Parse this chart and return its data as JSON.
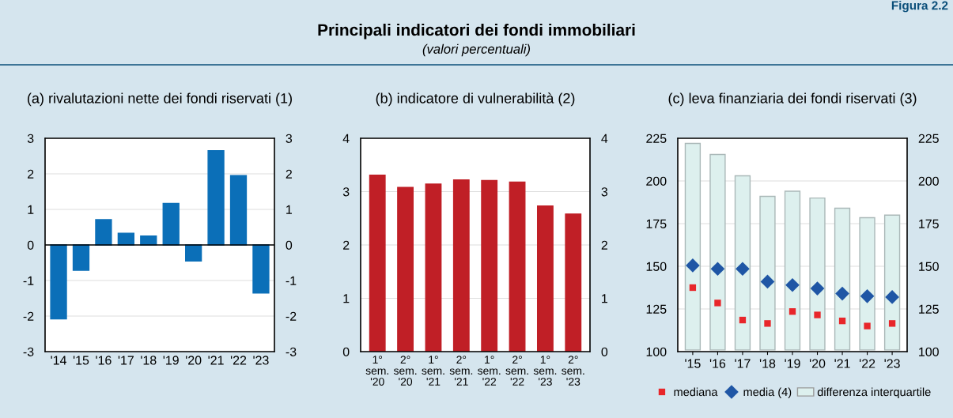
{
  "chart_data": [
    {
      "type": "other",
      "title": "Principali indicatori dei fondi immobiliari",
      "subtitle": "(valori percentuali)",
      "annotations": [
        "Figura 2.2"
      ]
    },
    {
      "type": "bar",
      "title": "(a) rivalutazioni nette dei fondi riservati (1)",
      "categories": [
        "'14",
        "'15",
        "'16",
        "'17",
        "'18",
        "'19",
        "'20",
        "'21",
        "'22",
        "'23"
      ],
      "series": [
        {
          "color": "#0b6fb8",
          "values": [
            -2.08,
            -0.71,
            0.71,
            0.33,
            0.25,
            1.17,
            -0.45,
            2.65,
            1.95,
            -1.35
          ]
        }
      ],
      "ylim": [
        -3,
        3
      ],
      "yticks": [
        {
          "value": -3,
          "label": "-3"
        },
        {
          "value": -2,
          "label": "-2"
        },
        {
          "value": -1,
          "label": "-1"
        },
        0,
        1,
        2,
        3
      ],
      "y2lim": [
        -3,
        3
      ],
      "y2ticks": [
        {
          "value": -3,
          "label": "-3"
        },
        {
          "value": -2,
          "label": "-2"
        },
        {
          "value": -1,
          "label": "-1"
        },
        0,
        1,
        2,
        3
      ],
      "ref_lines": [
        {
          "axis": "y",
          "value": 0,
          "color": "#000000"
        }
      ],
      "grid": "y",
      "legend": false
    },
    {
      "type": "bar",
      "title": "(b) indicatore di vulnerabilità (2)",
      "categories": [
        "1°\nsem.\n'20",
        "2°\nsem.\n'20",
        "1°\nsem.\n'21",
        "2°\nsem.\n'21",
        "1°\nsem.\n'22",
        "2°\nsem.\n'22",
        "1°\nsem.\n'23",
        "2°\nsem.\n'23"
      ],
      "series": [
        {
          "color": "#c01f26",
          "values": [
            3.31,
            3.08,
            3.14,
            3.22,
            3.21,
            3.18,
            2.73,
            2.58
          ]
        }
      ],
      "ylim": [
        0,
        4
      ],
      "yticks": [
        0,
        1,
        2,
        3,
        4
      ],
      "y2lim": [
        0,
        4
      ],
      "y2ticks": [
        0,
        1,
        2,
        3,
        4
      ],
      "grid": "y",
      "legend": false
    },
    {
      "type": "bar",
      "title": "(c) leva finanziaria dei fondi riservati (3)",
      "categories": [
        "'15",
        "'16",
        "'17",
        "'18",
        "'19",
        "'20",
        "'21",
        "'22",
        "'23"
      ],
      "series": [
        {
          "name": "mediana",
          "type": "scatter",
          "marker": "square",
          "color": "#e8262a",
          "values": [
            137.5,
            128.5,
            118.5,
            116.5,
            123.5,
            121.5,
            118,
            115,
            116.5
          ]
        },
        {
          "name": "media (4)",
          "type": "scatter",
          "marker": "diamond",
          "color": "#1f56a5",
          "values": [
            150.5,
            148.5,
            148.5,
            141,
            139,
            137,
            134,
            132.5,
            132
          ]
        },
        {
          "name": "differenza interquartile",
          "type": "bar",
          "color": "#ddf0ee",
          "base": [
            101,
            101,
            101,
            101,
            101,
            101,
            101,
            101,
            101
          ],
          "values": [
            121,
            114.5,
            102,
            90,
            93,
            89,
            83,
            77.5,
            79
          ]
        }
      ],
      "ylim": [
        100,
        225
      ],
      "yticks": [
        100,
        125,
        150,
        175,
        200,
        225
      ],
      "y2lim": [
        100,
        225
      ],
      "y2ticks": [
        100,
        125,
        150,
        175,
        200,
        225
      ],
      "grid": "y",
      "legend": "bottom"
    }
  ]
}
